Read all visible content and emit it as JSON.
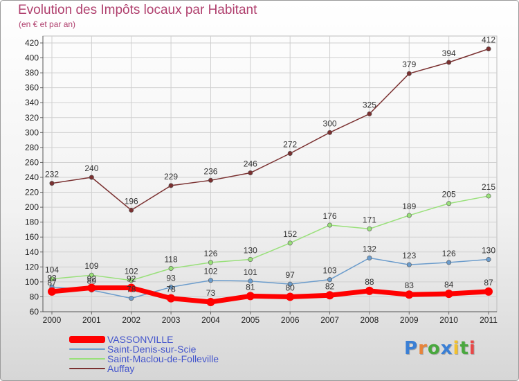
{
  "title": "Evolution des Impôts locaux par Habitant",
  "subtitle": "(en € et par an)",
  "logo": {
    "text": "Proxiti",
    "colors": [
      "#3a7fd5",
      "#e8843a",
      "#49a83e",
      "#3a7fd5",
      "#f2c12e",
      "#49a83e",
      "#e84848"
    ]
  },
  "chart_data": {
    "type": "line",
    "categories": [
      "2000",
      "2001",
      "2002",
      "2003",
      "2004",
      "2005",
      "2006",
      "2007",
      "2008",
      "2009",
      "2010",
      "2011"
    ],
    "ylim": [
      60,
      420
    ],
    "yticks": [
      60,
      80,
      100,
      120,
      140,
      160,
      180,
      200,
      220,
      240,
      260,
      280,
      300,
      320,
      340,
      360,
      380,
      400,
      420
    ],
    "grid": true,
    "legend_position": "bottom-left",
    "series": [
      {
        "name": "VASSONVILLE",
        "color": "#ff0000",
        "width": 7,
        "values": [
          87,
          92,
          92,
          78,
          73,
          81,
          80,
          82,
          88,
          83,
          84,
          87
        ],
        "labels": [
          "87",
          "92",
          "92",
          "78",
          "73",
          "81",
          "80",
          "82",
          "88",
          "83",
          "84",
          "87"
        ]
      },
      {
        "name": "Saint-Denis-sur-Scie",
        "color": "#6b9ccc",
        "width": 1.5,
        "values": [
          93,
          89,
          78,
          93,
          102,
          101,
          97,
          103,
          132,
          123,
          126,
          130
        ],
        "labels": [
          "93",
          "89",
          "78",
          "93",
          "102",
          "101",
          "97",
          "103",
          "132",
          "123",
          "126",
          "130"
        ]
      },
      {
        "name": "Saint-Maclou-de-Folleville",
        "color": "#99e07a",
        "width": 1.5,
        "values": [
          104,
          109,
          102,
          118,
          126,
          130,
          152,
          176,
          171,
          189,
          205,
          215
        ],
        "labels": [
          "104",
          "109",
          "102",
          "118",
          "126",
          "130",
          "152",
          "176",
          "171",
          "189",
          "205",
          "215"
        ]
      },
      {
        "name": "Auffay",
        "color": "#7a3030",
        "width": 1.5,
        "values": [
          232,
          240,
          196,
          229,
          236,
          246,
          272,
          300,
          325,
          379,
          394,
          412
        ],
        "labels": [
          "232",
          "240",
          "196",
          "229",
          "236",
          "246",
          "272",
          "300",
          "325",
          "379",
          "394",
          "412"
        ]
      }
    ]
  }
}
